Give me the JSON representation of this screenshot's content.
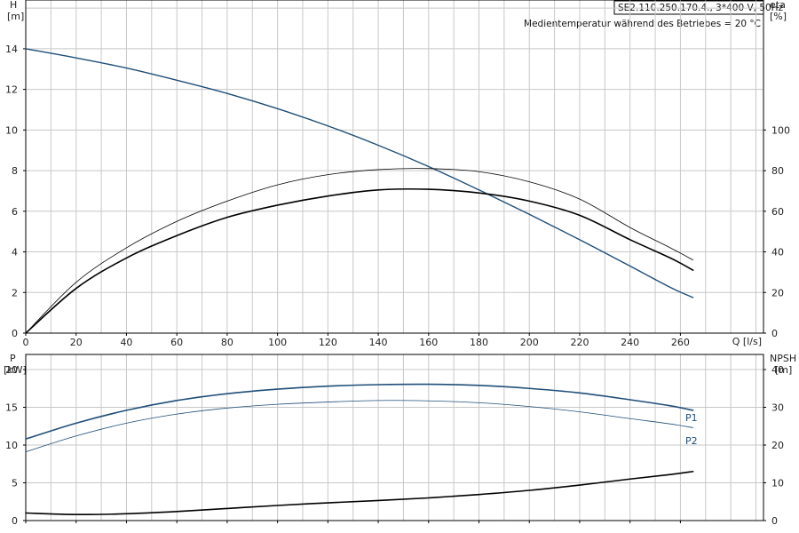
{
  "info": {
    "model": "SE2.110.250.170.4., 3*400 V, 50Hz",
    "medium_temp": "Medientemperatur während des Betriebes = 20 °C"
  },
  "colors": {
    "blue": "#1f4e79",
    "black": "#000000",
    "grid": "#c8c8c8",
    "frame": "#000000"
  },
  "chart_data": [
    {
      "type": "line",
      "x_label": "Q [l/s]",
      "left_axis": {
        "label_line1": "H",
        "label_line2": "[m]",
        "ticks": [
          0,
          2,
          4,
          6,
          8,
          10,
          12,
          14
        ],
        "range": [
          0,
          16.4
        ]
      },
      "right_axis": {
        "label_line1": "eta",
        "label_line2": "[%]",
        "ticks": [
          0,
          20,
          40,
          60,
          80,
          100
        ],
        "range": [
          0,
          164
        ]
      },
      "x_ticks": [
        0,
        20,
        40,
        60,
        80,
        100,
        120,
        140,
        160,
        180,
        200,
        220,
        240,
        260
      ],
      "x_range": [
        0,
        293
      ],
      "grid": true,
      "series": [
        {
          "axis": "left",
          "color": "blue",
          "width": 1.4,
          "x": [
            0,
            20,
            40,
            60,
            80,
            100,
            120,
            140,
            160,
            180,
            200,
            220,
            240,
            256,
            265
          ],
          "y": [
            14.0,
            13.55,
            13.05,
            12.45,
            11.8,
            11.05,
            10.2,
            9.25,
            8.2,
            7.05,
            5.85,
            4.6,
            3.3,
            2.25,
            1.75
          ]
        },
        {
          "axis": "right",
          "color": "black",
          "width": 0.8,
          "x": [
            0,
            20,
            40,
            60,
            80,
            100,
            120,
            140,
            160,
            180,
            200,
            220,
            240,
            256,
            265
          ],
          "y": [
            0,
            25,
            42,
            55,
            65,
            73,
            78,
            80.5,
            81,
            79.5,
            74.5,
            66,
            52,
            42,
            36
          ]
        },
        {
          "axis": "right",
          "color": "black",
          "width": 1.6,
          "x": [
            0,
            20,
            40,
            60,
            80,
            100,
            120,
            140,
            160,
            180,
            200,
            220,
            240,
            256,
            265
          ],
          "y": [
            0,
            22,
            37,
            48,
            57,
            63,
            67.5,
            70.5,
            70.8,
            69,
            65,
            58,
            46,
            37,
            31
          ]
        }
      ]
    },
    {
      "type": "line",
      "left_axis": {
        "label_line1": "P",
        "label_line2": "[kW]",
        "ticks": [
          0,
          5,
          10,
          15,
          20
        ],
        "range": [
          0,
          22
        ]
      },
      "right_axis": {
        "label_line1": "NPSH",
        "label_line2": "[m]",
        "ticks": [
          0,
          10,
          20,
          30,
          40
        ],
        "range": [
          0,
          44
        ]
      },
      "x_ticks": [
        0,
        20,
        40,
        60,
        80,
        100,
        120,
        140,
        160,
        180,
        200,
        220,
        240,
        260
      ],
      "x_range": [
        0,
        293
      ],
      "grid": true,
      "series": [
        {
          "name": "P1",
          "axis": "left",
          "color": "blue",
          "width": 1.6,
          "x": [
            0,
            20,
            40,
            60,
            80,
            100,
            120,
            140,
            160,
            180,
            200,
            220,
            240,
            256,
            265
          ],
          "y": [
            10.8,
            12.9,
            14.6,
            15.9,
            16.8,
            17.4,
            17.8,
            18.0,
            18.05,
            17.9,
            17.5,
            16.9,
            16.0,
            15.2,
            14.6
          ]
        },
        {
          "name": "P2",
          "axis": "left",
          "color": "blue",
          "width": 0.8,
          "x": [
            0,
            20,
            40,
            60,
            80,
            100,
            120,
            140,
            160,
            180,
            200,
            220,
            240,
            256,
            265
          ],
          "y": [
            9.1,
            11.2,
            12.9,
            14.1,
            14.9,
            15.4,
            15.7,
            15.9,
            15.85,
            15.6,
            15.1,
            14.4,
            13.5,
            12.8,
            12.3
          ]
        },
        {
          "axis": "right",
          "color": "black",
          "width": 1.6,
          "x": [
            0,
            20,
            40,
            60,
            80,
            100,
            120,
            140,
            160,
            180,
            200,
            220,
            240,
            256,
            265
          ],
          "y": [
            2.0,
            1.6,
            1.8,
            2.4,
            3.2,
            4.0,
            4.7,
            5.3,
            6.0,
            6.9,
            8.0,
            9.4,
            11.0,
            12.2,
            13.0
          ]
        }
      ]
    }
  ]
}
